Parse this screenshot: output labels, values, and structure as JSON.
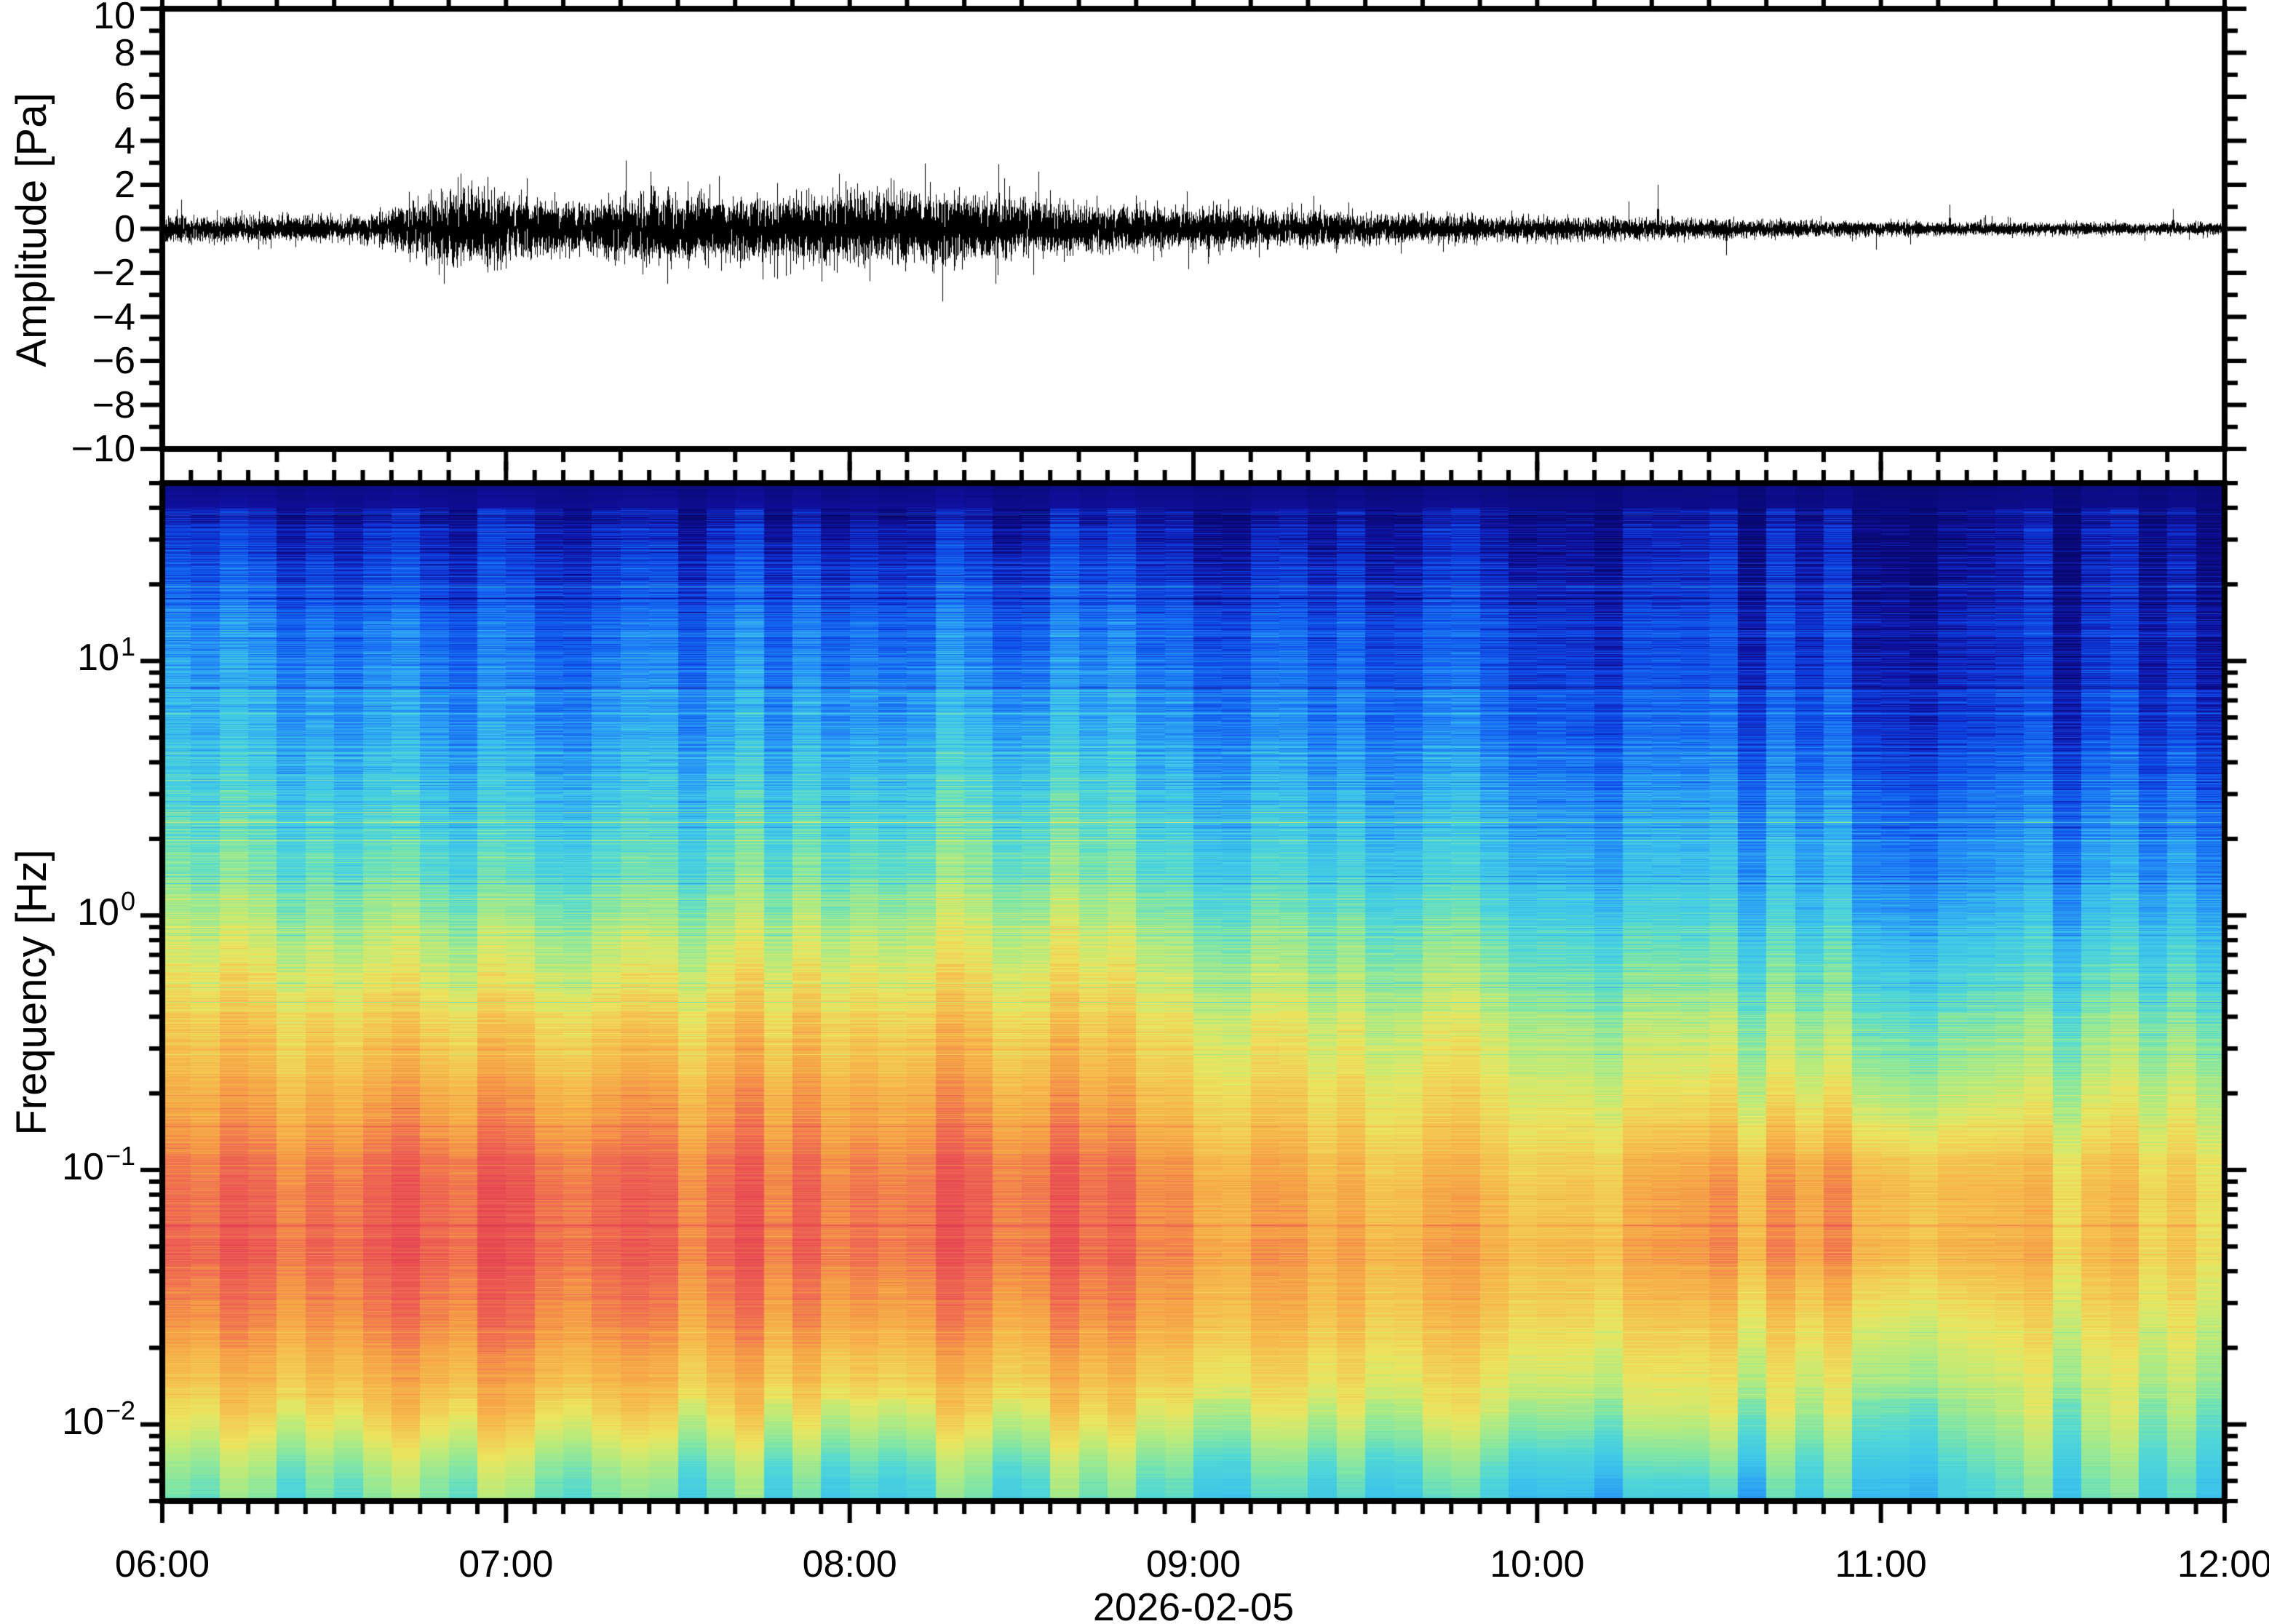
{
  "figure": {
    "date_label": "2026-02-05",
    "background_color": "#FFFFFF",
    "frame_color": "#000000"
  },
  "chart_data": [
    {
      "type": "line",
      "title": "",
      "ylabel": "Amplitude [Pa]",
      "ylim": [
        -10,
        10
      ],
      "ytick_step": 2,
      "ytick_values": [
        10,
        8,
        6,
        4,
        2,
        0,
        -2,
        -4,
        -6,
        -8,
        -10
      ],
      "ytick_labels": [
        "10",
        "8",
        "6",
        "4",
        "2",
        "0",
        "−2",
        "−4",
        "−6",
        "−8",
        "−10"
      ],
      "y_minor_step": 1,
      "x_start": "06:00",
      "x_end": "12:00",
      "x_major_interval_minutes": 60,
      "x_minor_interval_minutes": 10,
      "line_color": "#000000",
      "envelope": {
        "t_hours": [
          6.0,
          6.3,
          6.6,
          6.7,
          6.8,
          6.95,
          7.1,
          7.25,
          7.4,
          7.6,
          7.8,
          8.0,
          8.2,
          8.35,
          8.5,
          8.7,
          8.9,
          9.1,
          9.3,
          9.6,
          9.9,
          10.2,
          10.5,
          10.8,
          11.1,
          11.4,
          11.7,
          12.0
        ],
        "amplitude_pa": [
          0.55,
          0.5,
          0.55,
          0.9,
          1.5,
          1.6,
          1.1,
          1.05,
          1.45,
          1.35,
          1.25,
          1.45,
          1.5,
          1.35,
          1.15,
          0.95,
          0.9,
          0.8,
          0.75,
          0.6,
          0.5,
          0.45,
          0.4,
          0.33,
          0.3,
          0.26,
          0.24,
          0.26
        ]
      },
      "spikes": [
        [
          6.82,
          -2.5
        ],
        [
          6.9,
          2.2
        ],
        [
          7.06,
          2.3
        ],
        [
          7.42,
          2.6
        ],
        [
          7.47,
          -2.5
        ],
        [
          7.62,
          2.4
        ],
        [
          7.78,
          -2.2
        ],
        [
          7.97,
          2.5
        ],
        [
          8.12,
          2.3
        ],
        [
          8.27,
          -3.3
        ],
        [
          8.45,
          2.3
        ],
        [
          8.55,
          2.6
        ],
        [
          8.98,
          1.7
        ],
        [
          9.35,
          1.5
        ],
        [
          10.35,
          2.0
        ],
        [
          10.55,
          -1.2
        ],
        [
          11.2,
          1.1
        ],
        [
          11.85,
          0.9
        ]
      ]
    },
    {
      "type": "heatmap",
      "ylabel": "Frequency [Hz]",
      "xlabel": "2026-02-05",
      "y_scale": "log",
      "ylim_hz": [
        0.005,
        50
      ],
      "ytick_base": "10",
      "ytick_exponents": [
        "1",
        "0",
        "−1",
        "−2"
      ],
      "x_range_hours": [
        6,
        12
      ],
      "x_hour_labels": [
        "06:00",
        "07:00",
        "08:00",
        "09:00",
        "10:00",
        "11:00",
        "12:00"
      ],
      "x_major_interval_minutes": 60,
      "x_minor_interval_minutes": 5,
      "time_bin_minutes": 5,
      "grid": {
        "t_hours": [
          6.0,
          6.5,
          7.0,
          7.5,
          8.0,
          8.5,
          9.0,
          9.5,
          10.0,
          10.5,
          11.0,
          11.5,
          12.0
        ],
        "freq_hz": [
          50,
          40,
          25,
          10,
          5,
          2,
          1,
          0.5,
          0.2,
          0.1,
          0.05,
          0.025,
          0.012,
          0.007,
          0.005
        ],
        "values": [
          [
            0.03,
            0.03,
            0.03,
            0.03,
            0.03,
            0.03,
            0.03,
            0.02,
            0.02,
            0.02,
            0.02,
            0.02,
            0.02
          ],
          [
            0.06,
            0.05,
            0.05,
            0.05,
            0.06,
            0.05,
            0.05,
            0.04,
            0.04,
            0.03,
            0.03,
            0.03,
            0.03
          ],
          [
            0.16,
            0.13,
            0.11,
            0.14,
            0.15,
            0.14,
            0.12,
            0.1,
            0.09,
            0.08,
            0.07,
            0.06,
            0.06
          ],
          [
            0.3,
            0.26,
            0.22,
            0.26,
            0.28,
            0.26,
            0.24,
            0.2,
            0.17,
            0.14,
            0.12,
            0.1,
            0.1
          ],
          [
            0.35,
            0.32,
            0.28,
            0.32,
            0.34,
            0.36,
            0.3,
            0.26,
            0.23,
            0.2,
            0.17,
            0.15,
            0.15
          ],
          [
            0.44,
            0.42,
            0.38,
            0.42,
            0.45,
            0.47,
            0.4,
            0.36,
            0.33,
            0.3,
            0.27,
            0.25,
            0.26
          ],
          [
            0.54,
            0.52,
            0.49,
            0.53,
            0.56,
            0.57,
            0.5,
            0.45,
            0.42,
            0.38,
            0.35,
            0.33,
            0.35
          ],
          [
            0.64,
            0.63,
            0.61,
            0.64,
            0.67,
            0.66,
            0.6,
            0.55,
            0.52,
            0.48,
            0.45,
            0.43,
            0.45
          ],
          [
            0.73,
            0.74,
            0.75,
            0.76,
            0.78,
            0.77,
            0.7,
            0.64,
            0.62,
            0.6,
            0.58,
            0.55,
            0.57
          ],
          [
            0.82,
            0.84,
            0.86,
            0.85,
            0.86,
            0.87,
            0.8,
            0.72,
            0.7,
            0.74,
            0.76,
            0.68,
            0.66
          ],
          [
            0.86,
            0.87,
            0.88,
            0.87,
            0.88,
            0.88,
            0.82,
            0.76,
            0.74,
            0.77,
            0.78,
            0.71,
            0.67
          ],
          [
            0.78,
            0.8,
            0.82,
            0.8,
            0.8,
            0.8,
            0.76,
            0.7,
            0.68,
            0.66,
            0.64,
            0.62,
            0.6
          ],
          [
            0.64,
            0.68,
            0.7,
            0.68,
            0.66,
            0.68,
            0.64,
            0.6,
            0.58,
            0.56,
            0.54,
            0.54,
            0.52
          ],
          [
            0.5,
            0.52,
            0.54,
            0.52,
            0.5,
            0.52,
            0.5,
            0.46,
            0.44,
            0.42,
            0.44,
            0.46,
            0.44
          ],
          [
            0.44,
            0.46,
            0.48,
            0.46,
            0.44,
            0.46,
            0.44,
            0.4,
            0.38,
            0.34,
            0.4,
            0.42,
            0.4
          ]
        ]
      },
      "colormap": [
        [
          0.0,
          "#08086E"
        ],
        [
          0.06,
          "#1010A0"
        ],
        [
          0.13,
          "#0E3CDC"
        ],
        [
          0.2,
          "#1464F0"
        ],
        [
          0.28,
          "#2896F5"
        ],
        [
          0.35,
          "#3CC3EB"
        ],
        [
          0.42,
          "#50D7D7"
        ],
        [
          0.48,
          "#82E6A5"
        ],
        [
          0.55,
          "#B9EB7D"
        ],
        [
          0.62,
          "#EBE65F"
        ],
        [
          0.7,
          "#F5C350"
        ],
        [
          0.78,
          "#F5A046"
        ],
        [
          0.85,
          "#F06E52"
        ],
        [
          0.92,
          "#E84B52"
        ],
        [
          1.0,
          "#D7374B"
        ]
      ]
    }
  ]
}
